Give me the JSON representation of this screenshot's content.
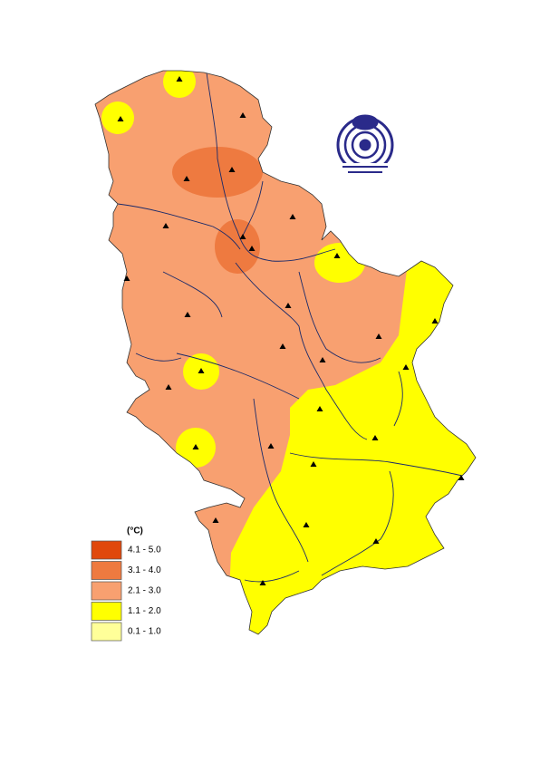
{
  "legend": {
    "unit": "(°C)",
    "classes": [
      {
        "label": "4.1 - 5.0",
        "color": "#e0480c"
      },
      {
        "label": "3.1 - 4.0",
        "color": "#ee7a40"
      },
      {
        "label": "2.1 - 3.0",
        "color": "#f8a070"
      },
      {
        "label": "1.1 - 2.0",
        "color": "#ffff00"
      },
      {
        "label": "0.1 - 1.0",
        "color": "#ffff99"
      }
    ]
  }
}
